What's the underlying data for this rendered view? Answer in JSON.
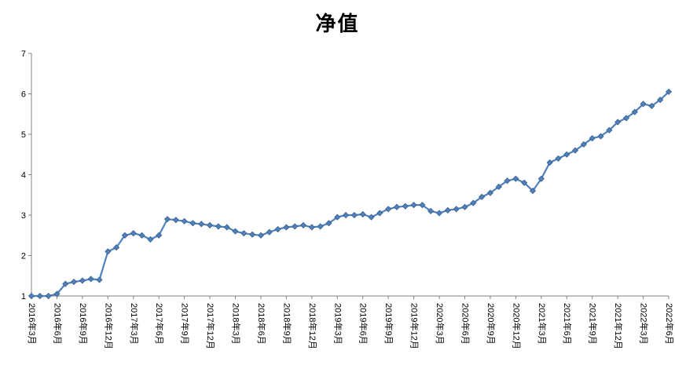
{
  "colors": {
    "line": "#4F81BD",
    "marker": "#4F81BD",
    "marker_edge": "#385D8A",
    "axis": "#808080",
    "text": "#000000",
    "background": "#FFFFFF"
  },
  "chart_data": {
    "type": "line",
    "title": "净值",
    "xlabel": "",
    "ylabel": "",
    "ylim": [
      1,
      7
    ],
    "y_ticks": [
      1,
      2,
      3,
      4,
      5,
      6,
      7
    ],
    "x_tick_every": 3,
    "grid": false,
    "legend": "none",
    "marker": "diamond",
    "x": [
      "2016年3月",
      "2016年4月",
      "2016年5月",
      "2016年6月",
      "2016年7月",
      "2016年8月",
      "2016年9月",
      "2016年10月",
      "2016年11月",
      "2016年12月",
      "2017年1月",
      "2017年2月",
      "2017年3月",
      "2017年4月",
      "2017年5月",
      "2017年6月",
      "2017年7月",
      "2017年8月",
      "2017年9月",
      "2017年10月",
      "2017年11月",
      "2017年12月",
      "2018年1月",
      "2018年2月",
      "2018年3月",
      "2018年4月",
      "2018年5月",
      "2018年6月",
      "2018年7月",
      "2018年8月",
      "2018年9月",
      "2018年10月",
      "2018年11月",
      "2018年12月",
      "2019年1月",
      "2019年2月",
      "2019年3月",
      "2019年4月",
      "2019年5月",
      "2019年6月",
      "2019年7月",
      "2019年8月",
      "2019年9月",
      "2019年10月",
      "2019年11月",
      "2019年12月",
      "2020年1月",
      "2020年2月",
      "2020年3月",
      "2020年4月",
      "2020年5月",
      "2020年6月",
      "2020年7月",
      "2020年8月",
      "2020年9月",
      "2020年10月",
      "2020年11月",
      "2020年12月",
      "2021年1月",
      "2021年2月",
      "2021年3月",
      "2021年4月",
      "2021年5月",
      "2021年6月",
      "2021年7月",
      "2021年8月",
      "2021年9月",
      "2021年10月",
      "2021年11月",
      "2021年12月",
      "2022年1月",
      "2022年2月",
      "2022年3月",
      "2022年4月",
      "2022年5月",
      "2022年6月"
    ],
    "values": [
      1.0,
      1.0,
      1.0,
      1.05,
      1.3,
      1.35,
      1.38,
      1.42,
      1.4,
      2.1,
      2.2,
      2.5,
      2.55,
      2.5,
      2.4,
      2.5,
      2.9,
      2.88,
      2.85,
      2.8,
      2.78,
      2.75,
      2.72,
      2.7,
      2.6,
      2.55,
      2.52,
      2.5,
      2.58,
      2.65,
      2.7,
      2.72,
      2.75,
      2.7,
      2.72,
      2.8,
      2.95,
      3.0,
      3.0,
      3.02,
      2.95,
      3.05,
      3.15,
      3.2,
      3.22,
      3.25,
      3.25,
      3.1,
      3.05,
      3.12,
      3.15,
      3.2,
      3.3,
      3.45,
      3.55,
      3.7,
      3.85,
      3.9,
      3.8,
      3.6,
      3.9,
      4.3,
      4.4,
      4.5,
      4.6,
      4.75,
      4.9,
      4.95,
      5.1,
      5.3,
      5.4,
      5.55,
      5.75,
      5.7,
      5.85,
      6.05
    ]
  }
}
